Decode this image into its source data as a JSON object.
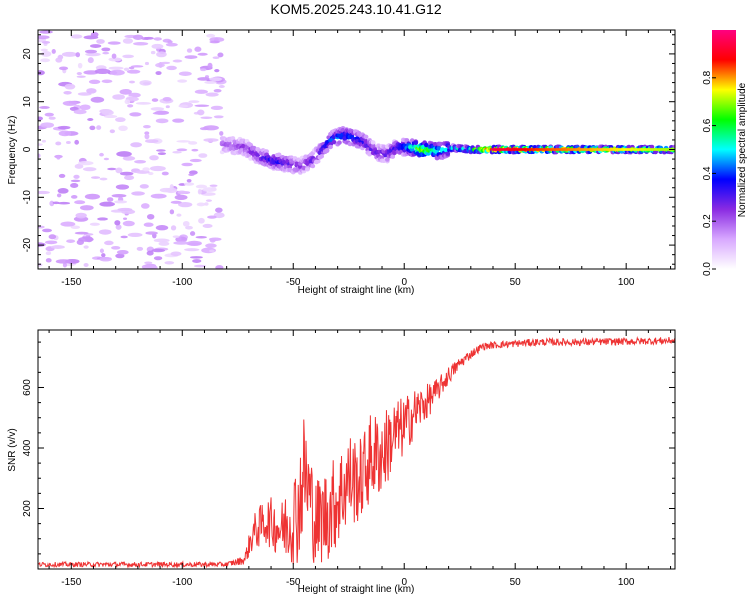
{
  "figure": {
    "title": "KOM5.2025.243.10.41.G12"
  },
  "chart_data": [
    {
      "type": "heatmap",
      "name": "spectrogram",
      "xlabel": "Height of straight line (km)",
      "ylabel": "Frequency (Hz)",
      "xlim": [
        -165,
        122
      ],
      "ylim": [
        -25,
        25
      ],
      "xticks": [
        -150,
        -100,
        -50,
        0,
        50,
        100
      ],
      "xtick_labels": [
        "-150",
        "-100",
        "-50",
        "0",
        "50",
        "100"
      ],
      "yticks": [
        -20,
        -10,
        0,
        10,
        20
      ],
      "ytick_labels": [
        "-20",
        "-10",
        "0",
        "10",
        "20"
      ],
      "ridge": {
        "description_points_x": [
          -80,
          -72,
          -65,
          -58,
          -52,
          -47,
          -42,
          -38,
          -33,
          -28,
          -23,
          -18,
          -13,
          -8,
          -3,
          2,
          8,
          15,
          22,
          30,
          40,
          60,
          80,
          100,
          122
        ],
        "frequency_hz": [
          1.0,
          0.5,
          -1.5,
          -2.5,
          -3.0,
          -3.5,
          -2.5,
          -0.5,
          2.0,
          3.0,
          2.5,
          1.5,
          -0.5,
          -1.0,
          0.5,
          0.5,
          0,
          -0.3,
          0.3,
          0,
          0,
          0,
          0,
          0,
          0
        ],
        "amplitude": [
          0.2,
          0.25,
          0.3,
          0.35,
          0.3,
          0.25,
          0.3,
          0.3,
          0.4,
          0.45,
          0.4,
          0.35,
          0.3,
          0.3,
          0.35,
          0.5,
          0.75,
          0.55,
          0.5,
          0.6,
          0.95,
          0.85,
          0.8,
          0.75,
          0.7
        ]
      },
      "colorbar": {
        "label": "Normalized spectral amplitude",
        "range": [
          0.0,
          1.0
        ],
        "ticks": [
          0.0,
          0.2,
          0.4,
          0.6,
          0.8
        ],
        "tick_labels": [
          "0.0",
          "0.2",
          "0.4",
          "0.6",
          "0.8"
        ],
        "colors": [
          "#ffffff",
          "#d8a8ff",
          "#8a2be2",
          "#0000ff",
          "#00ffff",
          "#00ff00",
          "#ffff00",
          "#ff0000",
          "#ff0080"
        ]
      }
    },
    {
      "type": "line",
      "name": "snr",
      "xlabel": "Height of straight line (km)",
      "ylabel": "SNR (v/v)",
      "xlim": [
        -165,
        122
      ],
      "ylim": [
        0,
        790
      ],
      "xticks": [
        -150,
        -100,
        -50,
        0,
        50,
        100
      ],
      "xtick_labels": [
        "-150",
        "-100",
        "-50",
        "0",
        "50",
        "100"
      ],
      "yticks": [
        200,
        400,
        600
      ],
      "ytick_labels": [
        "200",
        "400",
        "600"
      ],
      "series": [
        {
          "name": "SNR",
          "color": "#ee3333",
          "x": [
            -165,
            -140,
            -110,
            -80,
            -72,
            -68,
            -62,
            -55,
            -48,
            -45,
            -40,
            -35,
            -30,
            -25,
            -20,
            -15,
            -10,
            -5,
            0,
            5,
            10,
            15,
            20,
            25,
            30,
            35,
            40,
            50,
            60,
            80,
            100,
            122
          ],
          "y": [
            15,
            15,
            15,
            15,
            30,
            120,
            160,
            130,
            190,
            330,
            150,
            180,
            230,
            300,
            290,
            370,
            380,
            440,
            470,
            520,
            550,
            590,
            640,
            680,
            710,
            735,
            740,
            745,
            750,
            750,
            752,
            755
          ],
          "noise": [
            8,
            8,
            8,
            8,
            15,
            60,
            80,
            100,
            180,
            200,
            150,
            160,
            160,
            160,
            140,
            150,
            140,
            120,
            100,
            80,
            60,
            40,
            30,
            20,
            15,
            12,
            12,
            12,
            12,
            12,
            12,
            12
          ]
        }
      ]
    }
  ]
}
